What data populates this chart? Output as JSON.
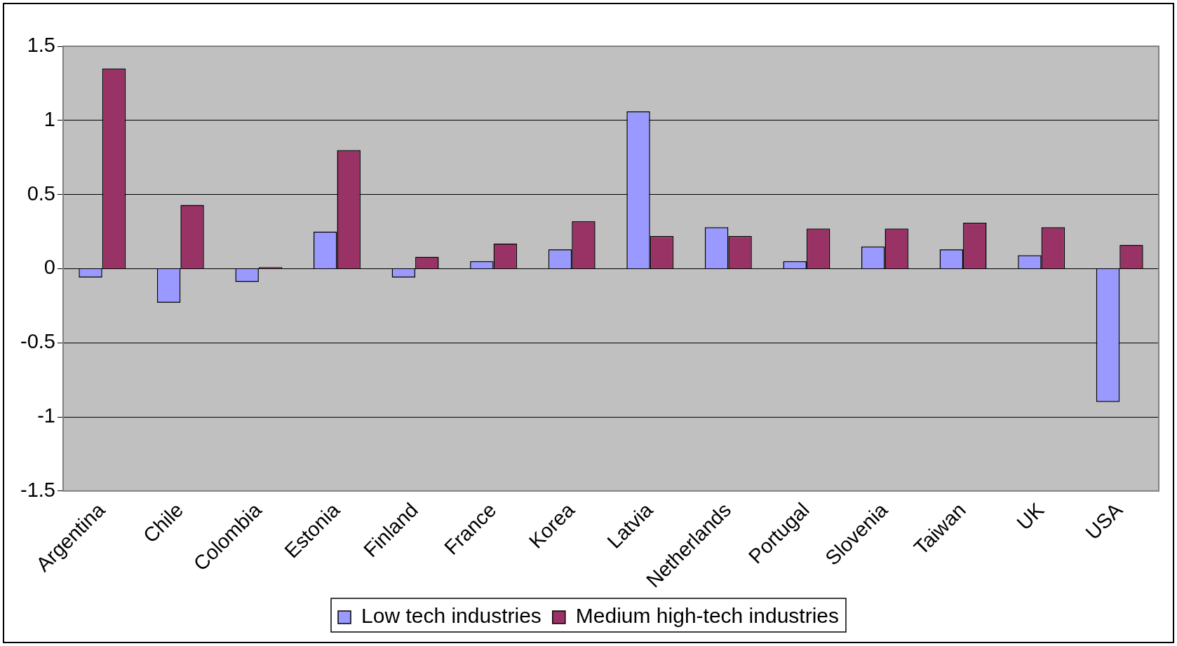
{
  "chart_data": {
    "type": "bar",
    "categories": [
      "Argentina",
      "Chile",
      "Colombia",
      "Estonia",
      "Finland",
      "France",
      "Korea",
      "Latvia",
      "Netherlands",
      "Portugal",
      "Slovenia",
      "Taiwan",
      "UK",
      "USA"
    ],
    "series": [
      {
        "name": "Low tech industries",
        "color": "#9999ff",
        "values": [
          -0.06,
          -0.23,
          -0.09,
          0.25,
          -0.06,
          0.05,
          0.13,
          1.06,
          0.28,
          0.05,
          0.15,
          0.13,
          0.09,
          -0.9
        ]
      },
      {
        "name": "Medium high-tech industries",
        "color": "#993366",
        "values": [
          1.35,
          0.43,
          0.01,
          0.8,
          0.08,
          0.17,
          0.32,
          0.22,
          0.22,
          0.27,
          0.27,
          0.31,
          0.28,
          0.16
        ]
      }
    ],
    "ylim": [
      -1.5,
      1.5
    ],
    "yticks": [
      -1.5,
      -1,
      -0.5,
      0,
      0.5,
      1,
      1.5
    ],
    "grid": "y",
    "legend": "bottom"
  }
}
